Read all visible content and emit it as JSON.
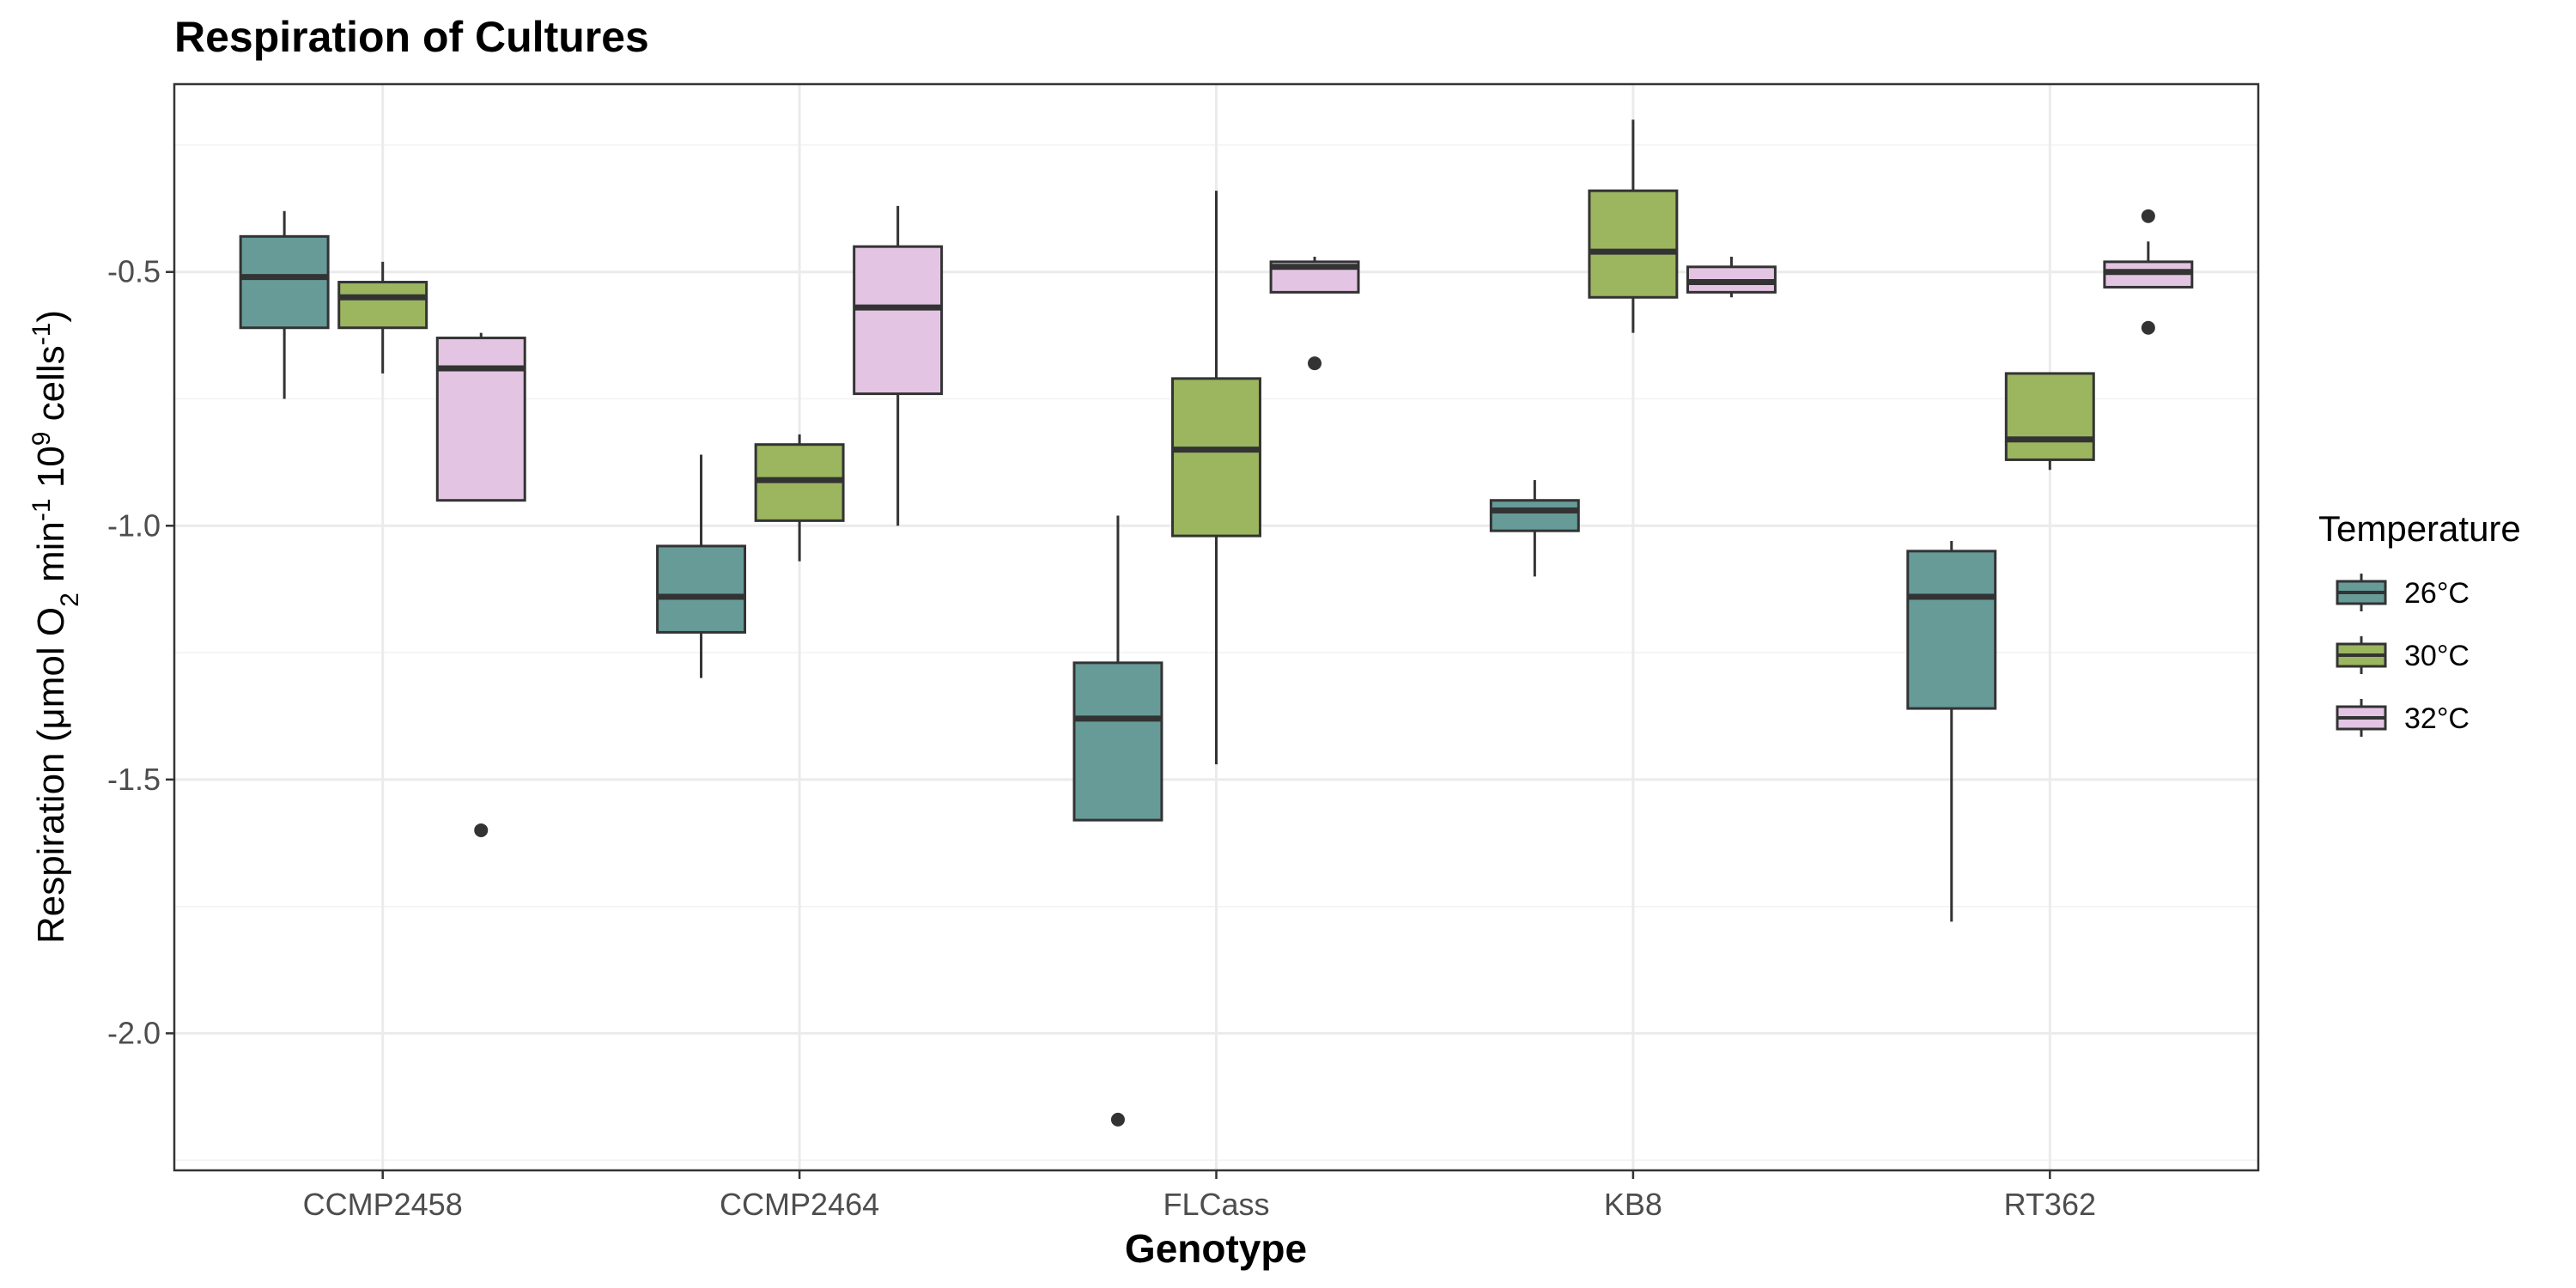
{
  "chart_data": {
    "type": "box",
    "title": "Respiration of Cultures",
    "xlabel": "Genotype",
    "ylabel": {
      "parts": [
        {
          "t": "Respiration (μmol O"
        },
        {
          "t": "2",
          "sub": true
        },
        {
          "t": " min"
        },
        {
          "t": "-1",
          "sup": true
        },
        {
          "t": " 10"
        },
        {
          "t": "9",
          "sup": true
        },
        {
          "t": " cells"
        },
        {
          "t": "-1",
          "sup": true
        },
        {
          "t": ")"
        }
      ]
    },
    "ylim": [
      -2.27,
      -0.13
    ],
    "yticks": [
      -2.0,
      -1.5,
      -1.0,
      -0.5
    ],
    "ytick_labels": [
      "-2.0",
      "-1.5",
      "-1.0",
      "-0.5"
    ],
    "grid": true,
    "legend": {
      "title": "Temperature",
      "position": "right",
      "entries": [
        "26°C",
        "30°C",
        "32°C"
      ]
    },
    "categories": [
      "CCMP2458",
      "CCMP2464",
      "FLCass",
      "KB8",
      "RT362"
    ],
    "series": [
      {
        "name": "26°C",
        "color": "#669b98",
        "boxes": [
          {
            "lower_whisker": -0.75,
            "q1": -0.61,
            "median": -0.51,
            "q3": -0.43,
            "upper_whisker": -0.38,
            "outliers": []
          },
          {
            "lower_whisker": -1.3,
            "q1": -1.21,
            "median": -1.14,
            "q3": -1.04,
            "upper_whisker": -0.86,
            "outliers": []
          },
          {
            "lower_whisker": -1.58,
            "q1": -1.58,
            "median": -1.38,
            "q3": -1.27,
            "upper_whisker": -0.98,
            "outliers": [
              -2.17
            ]
          },
          {
            "lower_whisker": -1.1,
            "q1": -1.01,
            "median": -0.97,
            "q3": -0.95,
            "upper_whisker": -0.91,
            "outliers": []
          },
          {
            "lower_whisker": -1.78,
            "q1": -1.36,
            "median": -1.14,
            "q3": -1.05,
            "upper_whisker": -1.03,
            "outliers": []
          }
        ]
      },
      {
        "name": "30°C",
        "color": "#9bb65f",
        "boxes": [
          {
            "lower_whisker": -0.7,
            "q1": -0.61,
            "median": -0.55,
            "q3": -0.52,
            "upper_whisker": -0.48,
            "outliers": []
          },
          {
            "lower_whisker": -1.07,
            "q1": -0.99,
            "median": -0.91,
            "q3": -0.84,
            "upper_whisker": -0.82,
            "outliers": []
          },
          {
            "lower_whisker": -1.47,
            "q1": -1.02,
            "median": -0.85,
            "q3": -0.71,
            "upper_whisker": -0.34,
            "outliers": []
          },
          {
            "lower_whisker": -0.62,
            "q1": -0.55,
            "median": -0.46,
            "q3": -0.34,
            "upper_whisker": -0.2,
            "outliers": []
          },
          {
            "lower_whisker": -0.89,
            "q1": -0.87,
            "median": -0.83,
            "q3": -0.7,
            "upper_whisker": -0.7,
            "outliers": []
          }
        ]
      },
      {
        "name": "32°C",
        "color": "#e3c5e3",
        "boxes": [
          {
            "lower_whisker": -0.95,
            "q1": -0.95,
            "median": -0.69,
            "q3": -0.63,
            "upper_whisker": -0.62,
            "outliers": [
              -1.6
            ]
          },
          {
            "lower_whisker": -1.0,
            "q1": -0.74,
            "median": -0.57,
            "q3": -0.45,
            "upper_whisker": -0.37,
            "outliers": []
          },
          {
            "lower_whisker": -0.54,
            "q1": -0.54,
            "median": -0.49,
            "q3": -0.48,
            "upper_whisker": -0.47,
            "outliers": [
              -0.68
            ]
          },
          {
            "lower_whisker": -0.55,
            "q1": -0.54,
            "median": -0.52,
            "q3": -0.49,
            "upper_whisker": -0.47,
            "outliers": []
          },
          {
            "lower_whisker": -0.53,
            "q1": -0.53,
            "median": -0.5,
            "q3": -0.48,
            "upper_whisker": -0.44,
            "outliers": [
              -0.39,
              -0.61
            ]
          }
        ]
      }
    ]
  }
}
